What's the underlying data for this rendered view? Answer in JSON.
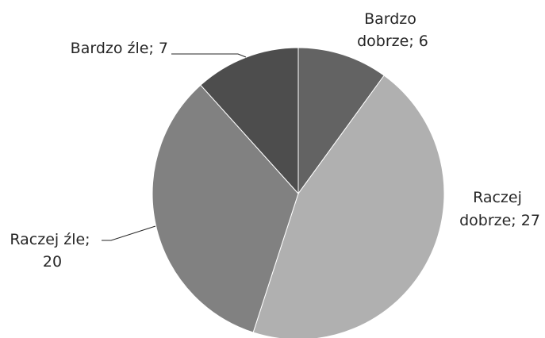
{
  "chart_data": {
    "type": "pie",
    "slices": [
      {
        "category": "Bardzo dobrze",
        "value": 6,
        "label_lines": [
          "Bardzo",
          "dobrze; 6"
        ],
        "color": "#636363"
      },
      {
        "category": "Raczej dobrze",
        "value": 27,
        "label_lines": [
          "Raczej",
          "dobrze; 27"
        ],
        "color": "#b0b0b0"
      },
      {
        "category": "Raczej źle",
        "value": 20,
        "label_lines": [
          "Raczej źle;",
          "20"
        ],
        "color": "#818181"
      },
      {
        "category": "Bardzo źle",
        "value": 7,
        "label_lines": [
          "Bardzo źle; 7"
        ],
        "color": "#4d4d4d"
      }
    ],
    "start_angle_deg": 0,
    "direction": "clockwise",
    "legend": "none",
    "title": ""
  }
}
